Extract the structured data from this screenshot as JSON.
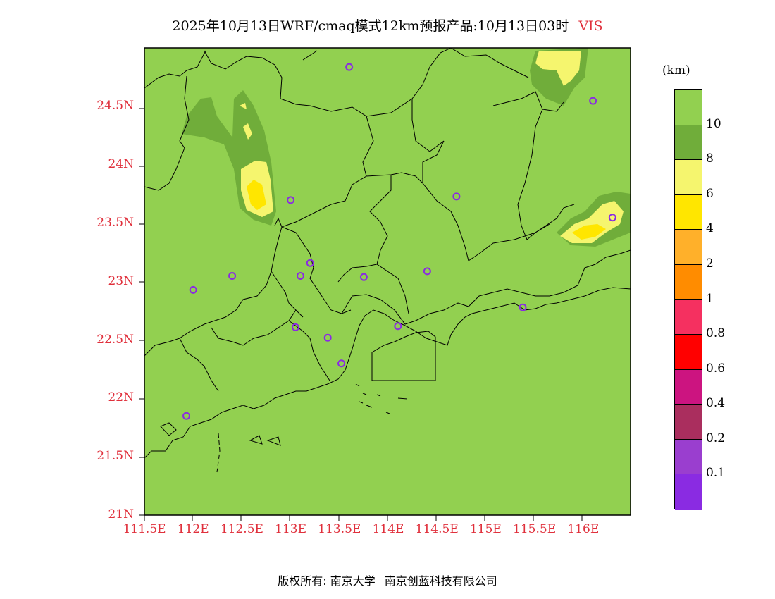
{
  "title": {
    "text": "2025年10月13日WRF/cmaq模式12km预报产品:10月13日03时",
    "variable": "VIS"
  },
  "unit": "(km)",
  "lat_labels": [
    "24.5N",
    "24N",
    "23.5N",
    "23N",
    "22.5N",
    "22N",
    "21.5N",
    "21N"
  ],
  "lon_labels": [
    "111.5E",
    "112E",
    "112.5E",
    "113E",
    "113.5E",
    "114E",
    "114.5E",
    "115E",
    "115.5E",
    "116E"
  ],
  "colorbar": {
    "colors": [
      "#92d050",
      "#70ad3a",
      "#f5f56e",
      "#ffe600",
      "#ffb02a",
      "#ff8c00",
      "#f53060",
      "#ff0000",
      "#cc1480",
      "#aa2e5e",
      "#9a3ecf",
      "#8a2be2"
    ],
    "labels": [
      "10",
      "8",
      "6",
      "4",
      "2",
      "1",
      "0.8",
      "0.6",
      "0.4",
      "0.2",
      "0.1"
    ]
  },
  "stations": [
    {
      "lon": 113.6,
      "lat": 24.84
    },
    {
      "lon": 116.1,
      "lat": 24.55
    },
    {
      "lon": 113.0,
      "lat": 23.7
    },
    {
      "lon": 114.7,
      "lat": 23.73
    },
    {
      "lon": 116.3,
      "lat": 23.55
    },
    {
      "lon": 113.2,
      "lat": 23.16
    },
    {
      "lon": 112.4,
      "lat": 23.05
    },
    {
      "lon": 113.1,
      "lat": 23.05
    },
    {
      "lon": 113.75,
      "lat": 23.04
    },
    {
      "lon": 114.4,
      "lat": 23.09
    },
    {
      "lon": 112.0,
      "lat": 22.93
    },
    {
      "lon": 115.38,
      "lat": 22.78
    },
    {
      "lon": 113.05,
      "lat": 22.61
    },
    {
      "lon": 114.1,
      "lat": 22.62
    },
    {
      "lon": 113.38,
      "lat": 22.52
    },
    {
      "lon": 113.52,
      "lat": 22.3
    },
    {
      "lon": 111.93,
      "lat": 21.85
    }
  ],
  "footer": {
    "left": "版权所有: 南京大学",
    "right": "南京创蓝科技有限公司"
  }
}
